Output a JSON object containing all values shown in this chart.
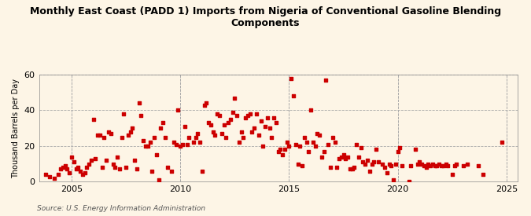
{
  "title": "Monthly East Coast (PADD 1) Imports from Nigeria of Conventional Gasoline Blending\nComponents",
  "ylabel": "Thousand Barrels per Day",
  "source": "Source: U.S. Energy Information Administration",
  "background_color": "#fdf5e6",
  "plot_bg_color": "#fdf5e6",
  "dot_color": "#cc0000",
  "dot_size": 8,
  "ylim": [
    0,
    60
  ],
  "yticks": [
    0,
    20,
    40,
    60
  ],
  "xlim": [
    2003.5,
    2025.5
  ],
  "xticks": [
    2005,
    2010,
    2015,
    2020,
    2025
  ],
  "data_x": [
    2003.8,
    2004.0,
    2004.2,
    2004.4,
    2004.5,
    2004.6,
    2004.7,
    2004.8,
    2004.9,
    2005.0,
    2005.1,
    2005.2,
    2005.3,
    2005.4,
    2005.5,
    2005.6,
    2005.7,
    2005.8,
    2005.9,
    2006.0,
    2006.1,
    2006.2,
    2006.3,
    2006.4,
    2006.5,
    2006.6,
    2006.7,
    2006.8,
    2006.9,
    2007.0,
    2007.1,
    2007.2,
    2007.3,
    2007.4,
    2007.5,
    2007.6,
    2007.7,
    2007.8,
    2007.9,
    2008.0,
    2008.1,
    2008.2,
    2008.3,
    2008.4,
    2008.5,
    2008.6,
    2008.7,
    2008.8,
    2008.9,
    2009.0,
    2009.1,
    2009.2,
    2009.3,
    2009.4,
    2009.6,
    2009.7,
    2009.8,
    2009.9,
    2010.0,
    2010.1,
    2010.2,
    2010.3,
    2010.4,
    2010.6,
    2010.7,
    2010.8,
    2010.9,
    2011.0,
    2011.1,
    2011.2,
    2011.3,
    2011.4,
    2011.5,
    2011.6,
    2011.7,
    2011.8,
    2011.9,
    2012.0,
    2012.1,
    2012.2,
    2012.3,
    2012.4,
    2012.5,
    2012.6,
    2012.7,
    2012.8,
    2012.9,
    2013.0,
    2013.1,
    2013.2,
    2013.3,
    2013.4,
    2013.5,
    2013.6,
    2013.7,
    2013.8,
    2013.9,
    2014.0,
    2014.1,
    2014.2,
    2014.3,
    2014.4,
    2014.5,
    2014.6,
    2014.7,
    2014.8,
    2014.9,
    2015.0,
    2015.1,
    2015.2,
    2015.3,
    2015.4,
    2015.5,
    2015.6,
    2015.7,
    2015.8,
    2015.9,
    2016.0,
    2016.1,
    2016.2,
    2016.3,
    2016.4,
    2016.5,
    2016.6,
    2016.7,
    2016.8,
    2016.9,
    2017.0,
    2017.1,
    2017.2,
    2017.3,
    2017.4,
    2017.5,
    2017.6,
    2017.7,
    2017.8,
    2017.9,
    2018.0,
    2018.1,
    2018.2,
    2018.3,
    2018.4,
    2018.5,
    2018.6,
    2018.7,
    2018.8,
    2018.9,
    2019.0,
    2019.1,
    2019.3,
    2019.4,
    2019.5,
    2019.6,
    2019.7,
    2019.8,
    2019.9,
    2020.0,
    2020.1,
    2020.2,
    2020.5,
    2020.6,
    2020.8,
    2020.9,
    2021.0,
    2021.1,
    2021.2,
    2021.3,
    2021.4,
    2021.5,
    2021.6,
    2021.7,
    2021.8,
    2021.9,
    2022.0,
    2022.1,
    2022.2,
    2022.3,
    2022.5,
    2022.6,
    2022.7,
    2023.0,
    2023.2,
    2023.7,
    2023.9,
    2024.8
  ],
  "data_y": [
    4,
    3,
    2,
    4,
    7,
    8,
    9,
    7,
    5,
    14,
    11,
    7,
    8,
    6,
    4,
    5,
    8,
    10,
    12,
    35,
    13,
    26,
    26,
    8,
    25,
    12,
    28,
    27,
    10,
    8,
    14,
    7,
    25,
    38,
    8,
    26,
    28,
    30,
    12,
    7,
    44,
    37,
    23,
    20,
    20,
    22,
    6,
    25,
    15,
    1,
    30,
    33,
    25,
    8,
    6,
    22,
    21,
    40,
    20,
    21,
    31,
    21,
    25,
    22,
    25,
    27,
    22,
    6,
    43,
    44,
    33,
    32,
    28,
    26,
    38,
    37,
    27,
    32,
    25,
    33,
    35,
    39,
    47,
    37,
    22,
    28,
    25,
    36,
    37,
    38,
    28,
    30,
    38,
    26,
    34,
    20,
    31,
    36,
    30,
    25,
    36,
    33,
    17,
    18,
    15,
    18,
    22,
    20,
    58,
    48,
    21,
    10,
    20,
    9,
    25,
    22,
    17,
    40,
    22,
    20,
    27,
    26,
    14,
    17,
    57,
    21,
    8,
    25,
    22,
    8,
    13,
    14,
    15,
    13,
    14,
    7,
    7,
    8,
    21,
    14,
    19,
    11,
    10,
    12,
    6,
    10,
    11,
    18,
    11,
    10,
    8,
    5,
    10,
    9,
    1,
    10,
    17,
    19,
    9,
    0,
    9,
    18,
    10,
    11,
    10,
    9,
    8,
    10,
    9,
    10,
    9,
    9,
    10,
    9,
    9,
    10,
    9,
    4,
    9,
    10,
    9,
    10,
    9,
    4,
    22
  ]
}
